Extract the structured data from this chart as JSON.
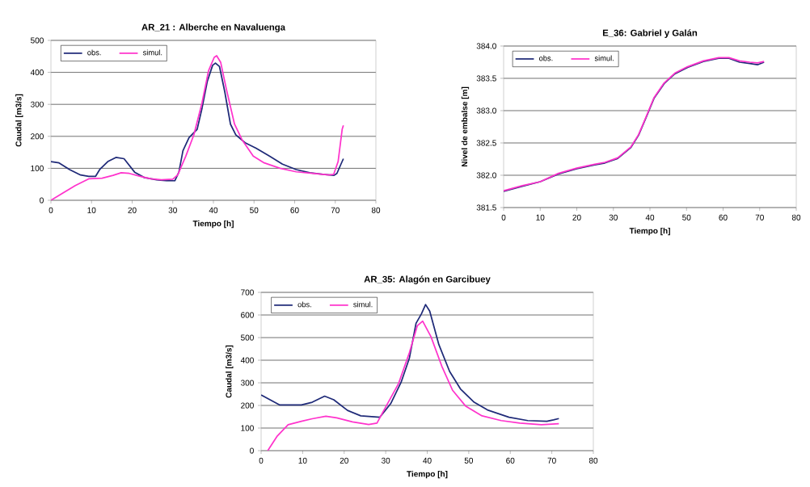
{
  "chart_data": [
    {
      "type": "line",
      "title": "AR_21 : Alberche en Navaluenga",
      "xlabel": "Tiempo [h]",
      "ylabel": "Caudal [m3/s]",
      "xlim": [
        0,
        80
      ],
      "ylim": [
        0,
        500
      ],
      "xticks": [
        0,
        10,
        20,
        30,
        40,
        50,
        60,
        70,
        80
      ],
      "yticks": [
        0,
        100,
        200,
        300,
        400,
        500
      ],
      "grid": "y",
      "legend": "top left",
      "series": [
        {
          "name": "obs.",
          "color": "#1f2a78",
          "x": [
            0,
            2,
            4.6,
            7.3,
            9.3,
            11,
            12,
            14,
            16,
            18,
            20.6,
            23,
            26,
            28.5,
            30.5,
            31.5,
            32.5,
            34,
            36,
            37.2,
            38.5,
            39.8,
            40.5,
            41.5,
            42.8,
            44.2,
            45.5,
            47.8,
            50.5,
            53.8,
            57,
            60.4,
            63.7,
            67,
            69.7,
            70.4,
            71.4,
            72
          ],
          "values": [
            121,
            117,
            96,
            79,
            75,
            75,
            96,
            121,
            134,
            130,
            88,
            71,
            64,
            61,
            61,
            88,
            155,
            196,
            222,
            288,
            372,
            422,
            429,
            418,
            339,
            238,
            205,
            180,
            163,
            138,
            113,
            96,
            86,
            81,
            78,
            84,
            113,
            130
          ]
        },
        {
          "name": "simul.",
          "color": "#ff33cc",
          "x": [
            0,
            2.7,
            6,
            9.3,
            12.6,
            15.3,
            17.3,
            19.3,
            22,
            24.6,
            27.2,
            30,
            31.2,
            33.2,
            35.2,
            37.2,
            38.8,
            40.2,
            40.8,
            41.8,
            43.2,
            45.2,
            47.1,
            49.8,
            52.5,
            56.4,
            60.4,
            64.4,
            68.4,
            69.6,
            70.7,
            71.7,
            72
          ],
          "values": [
            0,
            21,
            46,
            67,
            69,
            78,
            86,
            84,
            75,
            67,
            64,
            66,
            79,
            138,
            205,
            305,
            405,
            447,
            452,
            431,
            347,
            238,
            188,
            138,
            117,
            100,
            89,
            84,
            79,
            81,
            121,
            222,
            234
          ]
        }
      ]
    },
    {
      "type": "line",
      "title": "E_36: Gabriel y Galán",
      "xlabel": "Tiempo [h]",
      "ylabel": "Nivel de embalse [m]",
      "xlim": [
        0,
        80
      ],
      "ylim": [
        381.5,
        384.0
      ],
      "xticks": [
        0,
        10,
        20,
        30,
        40,
        50,
        60,
        70,
        80
      ],
      "yticks": [
        {
          "value": 381.5,
          "label": "381.5"
        },
        {
          "value": 382.0,
          "label": "382.0"
        },
        {
          "value": 382.5,
          "label": "382.5"
        },
        {
          "value": 383.0,
          "label": "383.0"
        },
        {
          "value": 383.5,
          "label": "383.5"
        },
        {
          "value": 384.0,
          "label": "384.0"
        }
      ],
      "grid": "y",
      "legend": "top left",
      "series": [
        {
          "name": "obs.",
          "color": "#1f2a78",
          "x": [
            0,
            5.1,
            10,
            15,
            20,
            24.9,
            27.7,
            31.2,
            34.8,
            36.9,
            39,
            41.1,
            43.9,
            46.8,
            50.3,
            54.6,
            58.8,
            61.6,
            64.5,
            67.3,
            69.4,
            71.2
          ],
          "values": [
            381.75,
            381.83,
            381.9,
            382.02,
            382.1,
            382.16,
            382.19,
            382.26,
            382.43,
            382.62,
            382.9,
            383.19,
            383.42,
            383.57,
            383.67,
            383.76,
            383.81,
            383.81,
            383.75,
            383.73,
            383.71,
            383.75
          ]
        },
        {
          "name": "simul.",
          "color": "#ff33cc",
          "x": [
            0,
            5.1,
            10,
            15,
            20,
            24.9,
            27.7,
            31.2,
            34.8,
            36.9,
            39,
            41.1,
            43.9,
            46.8,
            50.3,
            54.6,
            58.8,
            61.6,
            64.5,
            67.3,
            69.4,
            71.2
          ],
          "values": [
            381.76,
            381.84,
            381.9,
            382.03,
            382.11,
            382.17,
            382.2,
            382.27,
            382.44,
            382.63,
            382.91,
            383.2,
            383.43,
            383.58,
            383.68,
            383.77,
            383.82,
            383.82,
            383.77,
            383.75,
            383.74,
            383.76
          ]
        }
      ]
    },
    {
      "type": "line",
      "title": "AR_35: Alagón en Garcibuey",
      "xlabel": "Tiempo [h]",
      "ylabel": "Caudal [m3/s]",
      "xlim": [
        0,
        80
      ],
      "ylim": [
        0,
        700
      ],
      "xticks": [
        0,
        10,
        20,
        30,
        40,
        50,
        60,
        70,
        80
      ],
      "yticks": [
        0,
        100,
        200,
        300,
        400,
        500,
        600,
        700
      ],
      "grid": "y",
      "legend": "top left",
      "series": [
        {
          "name": "obs.",
          "color": "#1f2a78",
          "x": [
            0,
            4.5,
            9.7,
            12.3,
            15.3,
            17.5,
            20.8,
            24,
            28.6,
            31.2,
            33.7,
            35.7,
            37.3,
            38.6,
            39.6,
            40.6,
            42.8,
            45.4,
            48,
            51.3,
            54.5,
            59.7,
            64.2,
            68.8,
            70.4,
            71.7
          ],
          "values": [
            246,
            202,
            202,
            214,
            241,
            225,
            178,
            154,
            148,
            208,
            302,
            409,
            563,
            605,
            646,
            617,
            469,
            350,
            273,
            214,
            180,
            148,
            133,
            130,
            136,
            142
          ]
        },
        {
          "name": "simul.",
          "color": "#ff33cc",
          "x": [
            1.6,
            3.9,
            6.5,
            9.7,
            12.3,
            15.6,
            18.2,
            22,
            25.9,
            27.9,
            29.9,
            33.1,
            35.7,
            37.6,
            38.9,
            40.9,
            43.5,
            46.1,
            49.3,
            53.2,
            57.8,
            62.3,
            67.5,
            71.7
          ],
          "values": [
            0,
            65,
            115,
            130,
            141,
            152,
            145,
            127,
            116,
            122,
            190,
            297,
            433,
            552,
            573,
            504,
            374,
            267,
            196,
            154,
            133,
            122,
            115,
            119
          ]
        }
      ]
    }
  ]
}
